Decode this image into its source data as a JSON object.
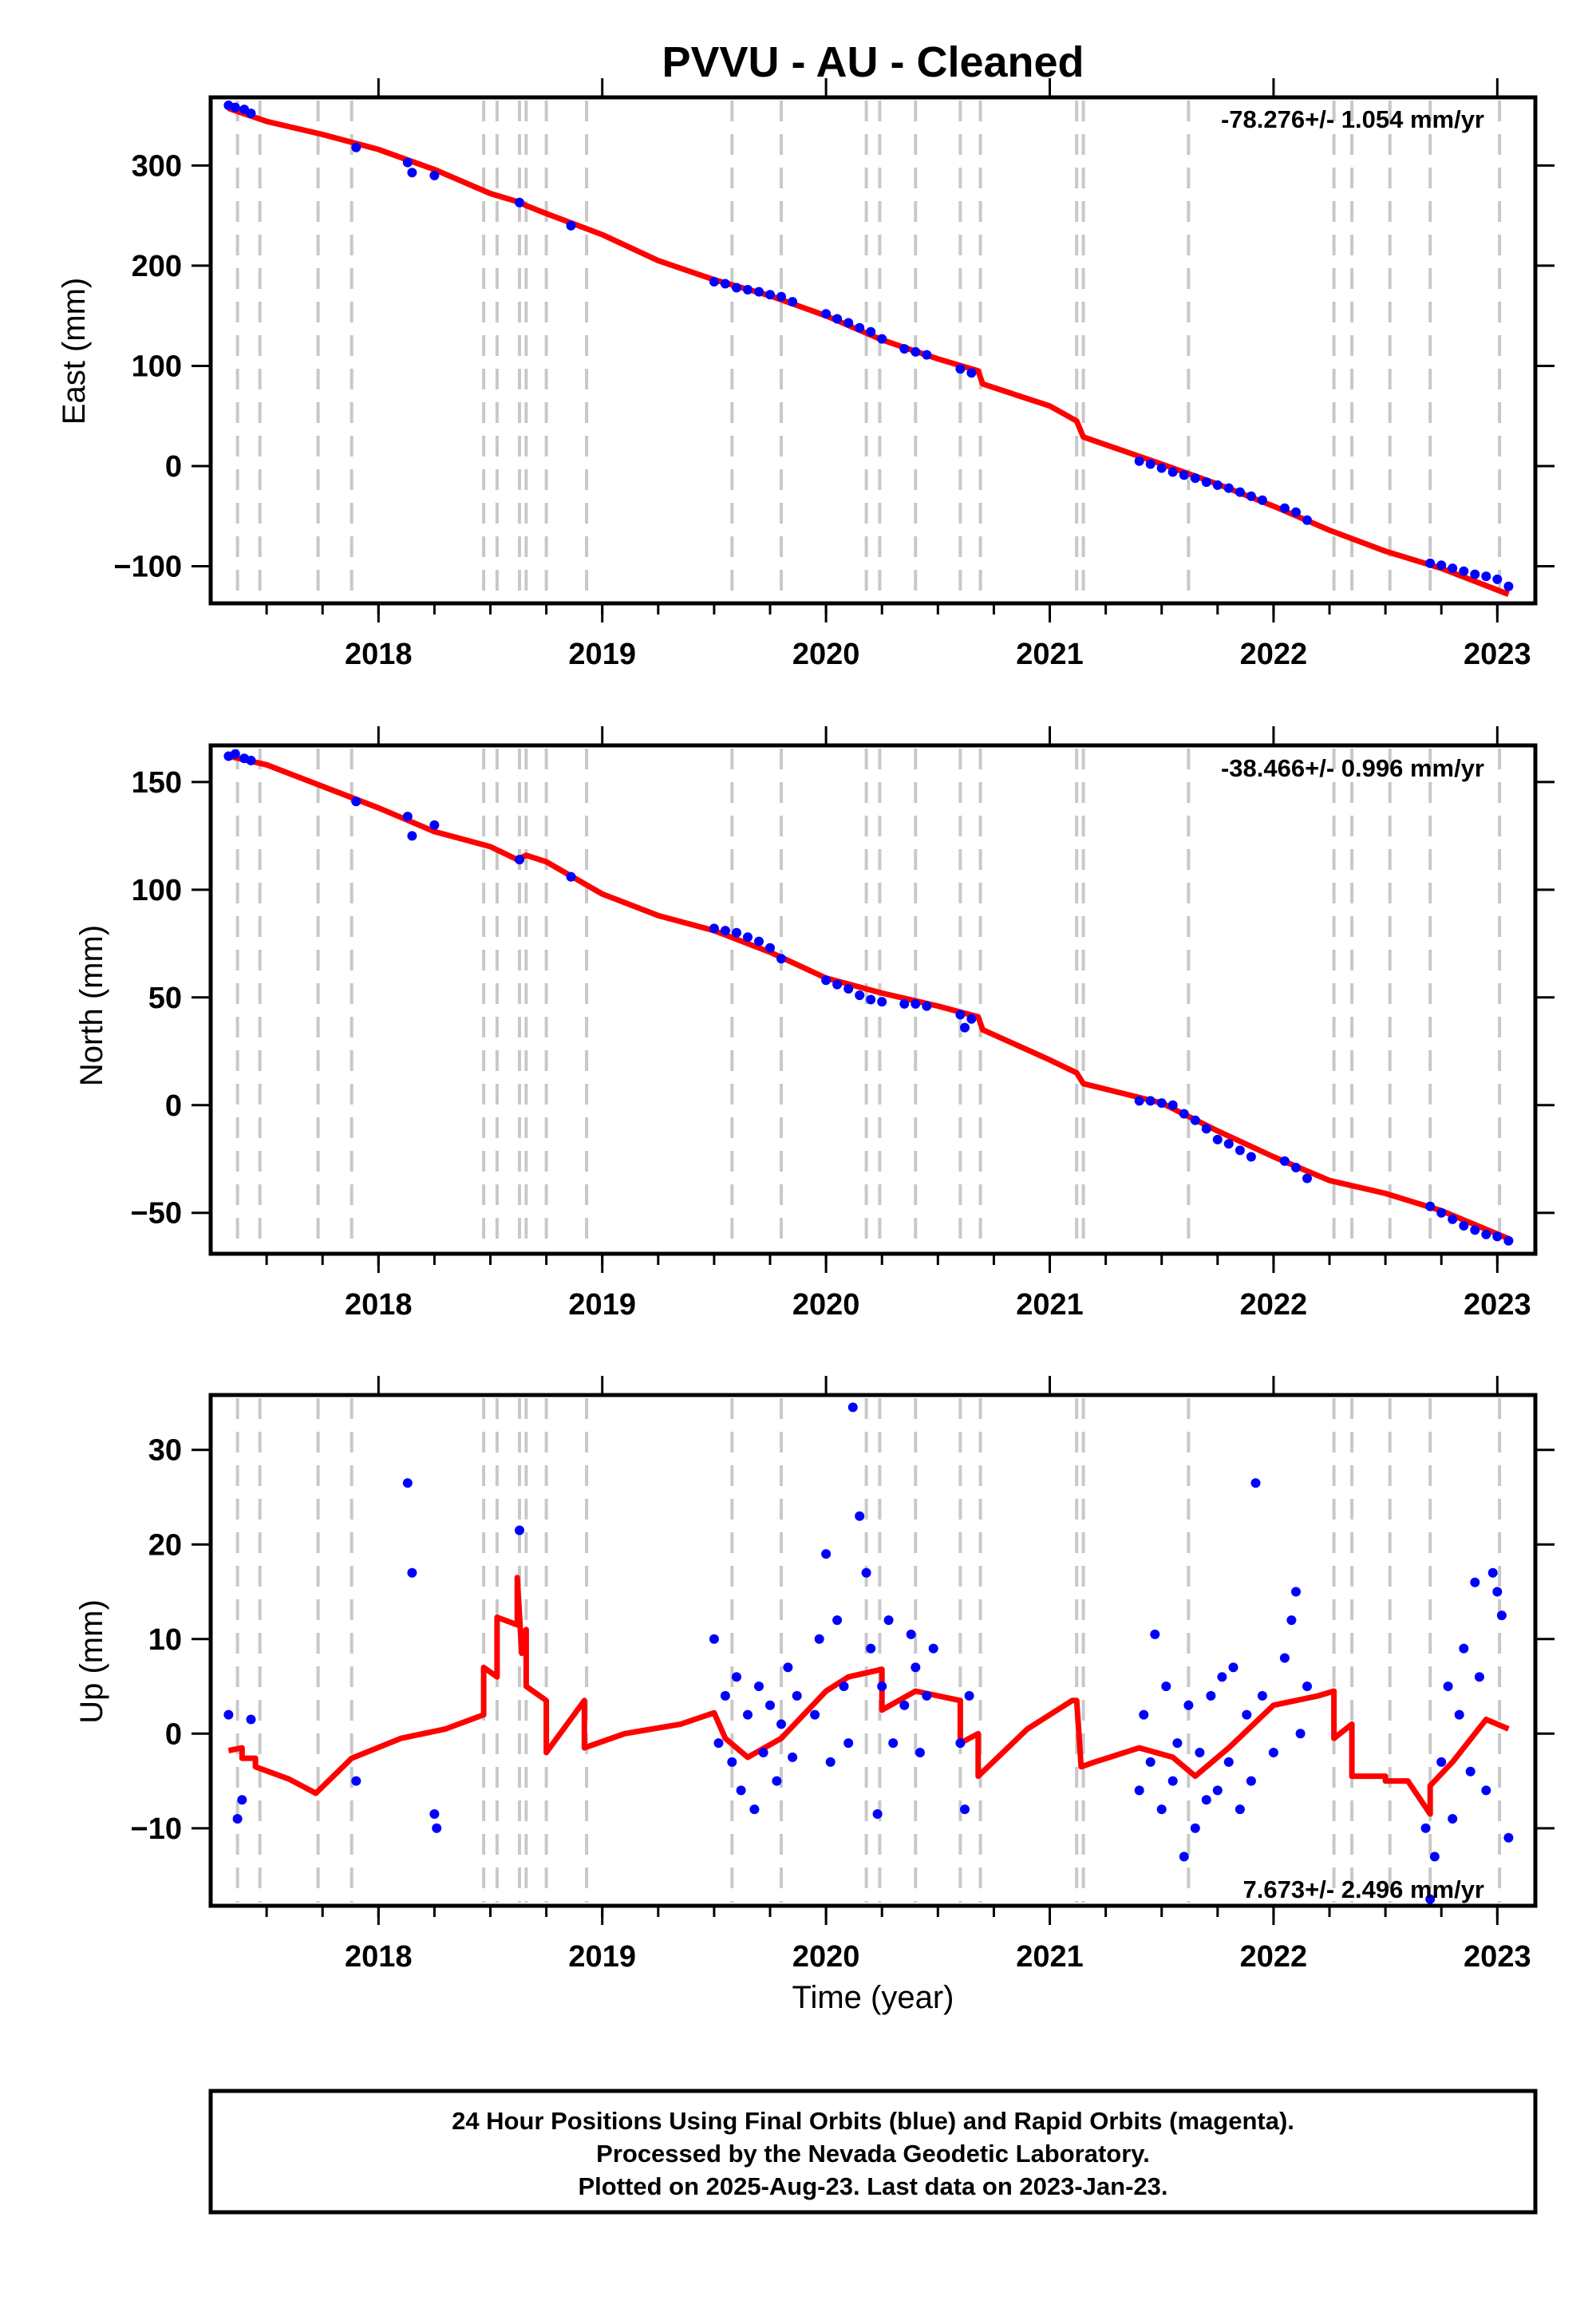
{
  "title": "PVVU  - AU - Cleaned",
  "x_axis_label": "Time (year)",
  "footer": {
    "line1": "24 Hour Positions Using Final Orbits (blue) and Rapid Orbits (magenta).",
    "line2": "Processed by the Nevada Geodetic Laboratory.",
    "line3": "Plotted on 2025-Aug-23. Last data on 2023-Jan-23."
  },
  "colors": {
    "data_points": "#0000ff",
    "model_line": "#ff0000",
    "event_lines": "#c8c8c8",
    "frame": "#000000"
  },
  "chart_data": [
    {
      "type": "scatter",
      "name": "east",
      "ylabel": "East (mm)",
      "rate_label": "-78.276+/- 1.054 mm/yr",
      "xlim": [
        2017.25,
        2023.17
      ],
      "ylim": [
        -137,
        368
      ],
      "x_ticks": [
        2018,
        2019,
        2020,
        2021,
        2022,
        2023
      ],
      "y_ticks": [
        300,
        200,
        100,
        0,
        -100
      ],
      "y_tick_labels": [
        "300",
        "200",
        "100",
        "0",
        "−100"
      ],
      "grid": false,
      "series": [
        {
          "role": "fit",
          "color": "#ff0000",
          "x": [
            2017.33,
            2017.5,
            2017.75,
            2018.0,
            2018.25,
            2018.5,
            2018.62,
            2018.66,
            2018.75,
            2019.0,
            2019.25,
            2019.5,
            2019.75,
            2020.0,
            2020.25,
            2020.5,
            2020.68,
            2020.7,
            2021.0,
            2021.12,
            2021.15,
            2021.5,
            2021.75,
            2022.0,
            2022.25,
            2022.5,
            2022.75,
            2023.05
          ],
          "y": [
            357,
            344,
            331,
            316,
            296,
            272,
            264,
            260,
            252,
            231,
            205,
            186,
            170,
            150,
            126,
            107,
            95,
            82,
            60,
            45,
            29,
            2,
            -18,
            -40,
            -64,
            -85,
            -102,
            -128
          ]
        },
        {
          "role": "data",
          "color": "#0000ff",
          "x": [
            2017.33,
            2017.36,
            2017.4,
            2017.43,
            2017.9,
            2018.13,
            2018.15,
            2018.25,
            2018.63,
            2018.86,
            2019.5,
            2019.55,
            2019.6,
            2019.65,
            2019.7,
            2019.75,
            2019.8,
            2019.85,
            2020.0,
            2020.05,
            2020.1,
            2020.15,
            2020.2,
            2020.25,
            2020.35,
            2020.4,
            2020.45,
            2020.6,
            2020.65,
            2021.4,
            2021.45,
            2021.5,
            2021.55,
            2021.6,
            2021.65,
            2021.7,
            2021.75,
            2021.8,
            2021.85,
            2021.9,
            2021.95,
            2022.05,
            2022.1,
            2022.15,
            2022.7,
            2022.75,
            2022.8,
            2022.85,
            2022.9,
            2022.95,
            2023.0,
            2023.05
          ],
          "y": [
            360,
            358,
            356,
            352,
            318,
            303,
            293,
            290,
            263,
            240,
            184,
            182,
            178,
            176,
            174,
            171,
            169,
            164,
            152,
            147,
            143,
            138,
            134,
            127,
            117,
            114,
            111,
            97,
            93,
            5,
            2,
            -2,
            -6,
            -9,
            -12,
            -16,
            -19,
            -22,
            -26,
            -30,
            -34,
            -42,
            -46,
            -54,
            -97,
            -99,
            -102,
            -105,
            -108,
            -110,
            -113,
            -120
          ]
        }
      ]
    },
    {
      "type": "scatter",
      "name": "north",
      "ylabel": "North (mm)",
      "rate_label": "-38.466+/- 0.996 mm/yr",
      "xlim": [
        2017.25,
        2023.17
      ],
      "ylim": [
        -69,
        167
      ],
      "x_ticks": [
        2018,
        2019,
        2020,
        2021,
        2022,
        2023
      ],
      "y_ticks": [
        150,
        100,
        50,
        0,
        -50
      ],
      "y_tick_labels": [
        "150",
        "100",
        "50",
        "0",
        "−50"
      ],
      "grid": false,
      "series": [
        {
          "role": "fit",
          "color": "#ff0000",
          "x": [
            2017.33,
            2017.5,
            2017.75,
            2018.0,
            2018.25,
            2018.5,
            2018.62,
            2018.66,
            2018.75,
            2019.0,
            2019.25,
            2019.5,
            2019.75,
            2020.0,
            2020.25,
            2020.5,
            2020.68,
            2020.7,
            2021.0,
            2021.12,
            2021.15,
            2021.5,
            2021.75,
            2022.0,
            2022.25,
            2022.5,
            2022.75,
            2023.05
          ],
          "y": [
            162,
            158,
            148,
            138,
            127,
            120,
            114,
            116,
            113,
            98,
            88,
            81,
            71,
            59,
            52,
            46,
            41,
            35,
            21,
            15,
            10,
            1,
            -12,
            -24,
            -35,
            -41,
            -49,
            -62
          ]
        },
        {
          "role": "data",
          "color": "#0000ff",
          "x": [
            2017.33,
            2017.36,
            2017.4,
            2017.43,
            2017.9,
            2018.13,
            2018.15,
            2018.25,
            2018.63,
            2018.86,
            2019.5,
            2019.55,
            2019.6,
            2019.65,
            2019.7,
            2019.75,
            2019.8,
            2020.0,
            2020.05,
            2020.1,
            2020.15,
            2020.2,
            2020.25,
            2020.35,
            2020.4,
            2020.45,
            2020.6,
            2020.62,
            2020.65,
            2021.4,
            2021.45,
            2021.5,
            2021.55,
            2021.6,
            2021.65,
            2021.7,
            2021.75,
            2021.8,
            2021.85,
            2021.9,
            2022.05,
            2022.1,
            2022.15,
            2022.7,
            2022.75,
            2022.8,
            2022.85,
            2022.9,
            2022.95,
            2023.0,
            2023.05
          ],
          "y": [
            162,
            163,
            161,
            160,
            141,
            134,
            125,
            130,
            114,
            106,
            82,
            81,
            80,
            78,
            76,
            73,
            68,
            58,
            56,
            54,
            51,
            49,
            48,
            47,
            47,
            46,
            42,
            36,
            40,
            2,
            2,
            1,
            0,
            -4,
            -7,
            -11,
            -16,
            -18,
            -21,
            -24,
            -26,
            -29,
            -34,
            -47,
            -50,
            -53,
            -56,
            -58,
            -60,
            -61,
            -63
          ]
        }
      ]
    },
    {
      "type": "scatter",
      "name": "up",
      "ylabel": "Up (mm)",
      "rate_label": "7.673+/- 2.496 mm/yr",
      "xlim": [
        2017.25,
        2023.17
      ],
      "ylim": [
        -18.2,
        35.8
      ],
      "x_ticks": [
        2018,
        2019,
        2020,
        2021,
        2022,
        2023
      ],
      "x_tick_labels": [
        "2018",
        "2019",
        "2020",
        "2021",
        "2022",
        "2023"
      ],
      "y_ticks": [
        30,
        20,
        10,
        0,
        -10
      ],
      "y_tick_labels": [
        "30",
        "20",
        "10",
        "0",
        "−10"
      ],
      "grid": false,
      "series": [
        {
          "role": "fit",
          "color": "#ff0000",
          "x": [
            2017.33,
            2017.39,
            2017.39,
            2017.45,
            2017.45,
            2017.6,
            2017.72,
            2017.72,
            2017.88,
            2017.88,
            2018.1,
            2018.3,
            2018.47,
            2018.47,
            2018.53,
            2018.53,
            2018.62,
            2018.62,
            2018.64,
            2018.64,
            2018.66,
            2018.66,
            2018.75,
            2018.75,
            2018.92,
            2018.92,
            2019.1,
            2019.35,
            2019.5,
            2019.55,
            2019.65,
            2019.8,
            2020.0,
            2020.1,
            2020.25,
            2020.25,
            2020.4,
            2020.6,
            2020.6,
            2020.68,
            2020.68,
            2020.9,
            2021.1,
            2021.12,
            2021.14,
            2021.2,
            2021.4,
            2021.55,
            2021.65,
            2021.8,
            2022.0,
            2022.2,
            2022.27,
            2022.27,
            2022.35,
            2022.35,
            2022.5,
            2022.5,
            2022.6,
            2022.7,
            2022.7,
            2022.8,
            2022.95,
            2023.05
          ],
          "y": [
            -1.8,
            -1.5,
            -2.6,
            -2.6,
            -3.5,
            -4.8,
            -6.3,
            -6.3,
            -2.6,
            -2.6,
            -0.5,
            0.5,
            2.0,
            7.0,
            6.0,
            12.3,
            11.5,
            16.5,
            8.5,
            10.5,
            11.0,
            5.0,
            3.5,
            -2.0,
            3.5,
            -1.5,
            0.0,
            1.0,
            2.2,
            -0.5,
            -2.5,
            -0.5,
            4.5,
            6.0,
            6.8,
            2.5,
            4.5,
            3.5,
            -1.0,
            0.0,
            -4.5,
            0.5,
            3.5,
            3.5,
            -3.5,
            -3.0,
            -1.5,
            -2.5,
            -4.5,
            -1.5,
            3.0,
            4.0,
            4.5,
            -0.5,
            1.0,
            -4.5,
            -4.5,
            -5.0,
            -5.0,
            -8.5,
            -5.5,
            -3.0,
            1.5,
            0.5
          ]
        },
        {
          "role": "data",
          "color": "#0000ff",
          "x": [
            2017.33,
            2017.37,
            2017.39,
            2017.43,
            2017.9,
            2018.13,
            2018.15,
            2018.25,
            2018.26,
            2018.63,
            2019.5,
            2019.52,
            2019.55,
            2019.58,
            2019.6,
            2019.62,
            2019.65,
            2019.68,
            2019.7,
            2019.72,
            2019.75,
            2019.78,
            2019.8,
            2019.83,
            2019.85,
            2019.87,
            2019.95,
            2019.97,
            2020.0,
            2020.02,
            2020.05,
            2020.08,
            2020.1,
            2020.12,
            2020.15,
            2020.18,
            2020.2,
            2020.23,
            2020.25,
            2020.28,
            2020.3,
            2020.35,
            2020.38,
            2020.4,
            2020.42,
            2020.45,
            2020.48,
            2020.6,
            2020.62,
            2020.64,
            2021.4,
            2021.42,
            2021.45,
            2021.47,
            2021.5,
            2021.52,
            2021.55,
            2021.57,
            2021.6,
            2021.62,
            2021.65,
            2021.67,
            2021.7,
            2021.72,
            2021.75,
            2021.77,
            2021.8,
            2021.82,
            2021.85,
            2021.88,
            2021.9,
            2021.92,
            2021.95,
            2022.0,
            2022.05,
            2022.08,
            2022.1,
            2022.12,
            2022.15,
            2022.68,
            2022.7,
            2022.72,
            2022.75,
            2022.78,
            2022.8,
            2022.83,
            2022.85,
            2022.88,
            2022.9,
            2022.92,
            2022.95,
            2022.98,
            2023.0,
            2023.02,
            2023.05
          ],
          "y": [
            2.0,
            -9.0,
            -7.0,
            1.5,
            -5.0,
            26.5,
            17.0,
            -8.5,
            -10.0,
            21.5,
            10.0,
            -1.0,
            4.0,
            -3.0,
            6.0,
            -6.0,
            2.0,
            -8.0,
            5.0,
            -2.0,
            3.0,
            -5.0,
            1.0,
            7.0,
            -2.5,
            4.0,
            2.0,
            10.0,
            19.0,
            -3.0,
            12.0,
            5.0,
            -1.0,
            34.5,
            23.0,
            17.0,
            9.0,
            -8.5,
            5.0,
            12.0,
            -1.0,
            3.0,
            10.5,
            7.0,
            -2.0,
            4.0,
            9.0,
            -1.0,
            -8.0,
            4.0,
            -6.0,
            2.0,
            -3.0,
            10.5,
            -8.0,
            5.0,
            -5.0,
            -1.0,
            -13.0,
            3.0,
            -10.0,
            -2.0,
            -7.0,
            4.0,
            -6.0,
            6.0,
            -3.0,
            7.0,
            -8.0,
            2.0,
            -5.0,
            26.5,
            4.0,
            -2.0,
            8.0,
            12.0,
            15.0,
            0.0,
            5.0,
            -10.0,
            -17.5,
            -13.0,
            -3.0,
            5.0,
            -9.0,
            2.0,
            9.0,
            -4.0,
            16.0,
            6.0,
            -6.0,
            17.0,
            15.0,
            12.5,
            -11.0
          ]
        }
      ]
    }
  ],
  "event_markers_x": [
    2017.37,
    2017.47,
    2017.73,
    2017.88,
    2018.47,
    2018.53,
    2018.63,
    2018.66,
    2018.75,
    2018.93,
    2019.58,
    2019.8,
    2020.18,
    2020.24,
    2020.4,
    2020.6,
    2020.69,
    2021.12,
    2021.15,
    2021.62,
    2022.27,
    2022.35,
    2022.52,
    2022.7,
    2023.01
  ]
}
